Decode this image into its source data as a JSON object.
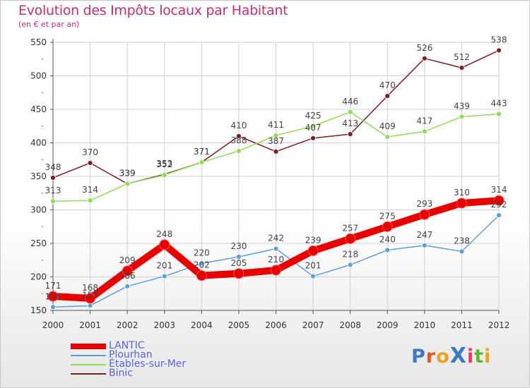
{
  "header": {
    "title": "Evolution des Impôts locaux par Habitant",
    "subtitle": "(en € et par an)"
  },
  "logo": {
    "text": "ProXiti"
  },
  "colors": {
    "title": "#c0306e",
    "legend_text": "#5b64d6",
    "axis_text": "#333333",
    "grid": "#d0d0d0"
  },
  "chart_data": {
    "type": "line",
    "title": "Evolution des Impôts locaux par Habitant",
    "subtitle": "(en € et par an)",
    "xlabel": "",
    "ylabel": "",
    "categories": [
      "2000",
      "2001",
      "2002",
      "2003",
      "2004",
      "2005",
      "2006",
      "2007",
      "2008",
      "2009",
      "2010",
      "2011",
      "2012"
    ],
    "ylim": [
      150,
      550
    ],
    "yticks": [
      150,
      200,
      250,
      300,
      350,
      400,
      450,
      500,
      550
    ],
    "grid": true,
    "legend_position": "bottom-left",
    "series": [
      {
        "name": "LANTIC",
        "color": "#e60000",
        "values": [
          171,
          168,
          209,
          248,
          202,
          205,
          210,
          239,
          257,
          275,
          293,
          310,
          314
        ]
      },
      {
        "name": "Plourhan",
        "color": "#5f9ed8",
        "values": [
          155,
          157,
          186,
          201,
          220,
          230,
          242,
          201,
          218,
          240,
          247,
          238,
          292
        ]
      },
      {
        "name": "Étables-sur-Mer",
        "color": "#8fdb5a",
        "values": [
          313,
          314,
          339,
          352,
          371,
          388,
          411,
          425,
          446,
          409,
          417,
          439,
          443
        ]
      },
      {
        "name": "Binic",
        "color": "#7a1e24",
        "values": [
          348,
          370,
          339,
          353,
          371,
          410,
          387,
          407,
          413,
          470,
          526,
          512,
          538
        ]
      }
    ]
  }
}
